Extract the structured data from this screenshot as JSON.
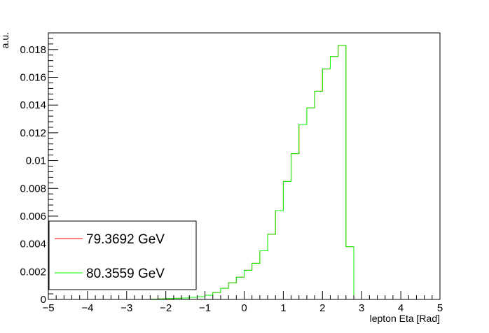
{
  "chart_data": {
    "type": "histogram-step",
    "xlabel": "lepton Eta [Rad]",
    "ylabel": "a.u.",
    "xlim": [
      -5,
      5
    ],
    "ylim": [
      0,
      0.0192
    ],
    "x_ticks": [
      -5,
      -4,
      -3,
      -2,
      -1,
      0,
      1,
      2,
      3,
      4,
      5
    ],
    "x_tick_labels": [
      "−5",
      "−4",
      "−3",
      "−2",
      "−1",
      "0",
      "1",
      "2",
      "3",
      "4",
      "5"
    ],
    "y_ticks": [
      0,
      0.002,
      0.004,
      0.006,
      0.008,
      0.01,
      0.012,
      0.014,
      0.016,
      0.018
    ],
    "y_tick_labels": [
      "0",
      "0.002",
      "0.004",
      "0.006",
      "0.008",
      "0.01",
      "0.012",
      "0.014",
      "0.016",
      "0.018"
    ],
    "bin_width": 0.2,
    "bin_edges_start": -2.4,
    "series": [
      {
        "name": "79.3692 GeV",
        "color": "#ff0000",
        "values": [
          2e-05,
          4e-05,
          6e-05,
          8e-05,
          0.0001,
          0.00015,
          0.0002,
          0.0003,
          0.0005,
          0.0008,
          0.0012,
          0.0016,
          0.0021,
          0.0026,
          0.0035,
          0.0047,
          0.0064,
          0.0085,
          0.0105,
          0.0126,
          0.0138,
          0.015,
          0.0166,
          0.0175,
          0.0183,
          0.0038,
          0.0
        ]
      },
      {
        "name": "80.3559 GeV",
        "color": "#00ff00",
        "values": [
          2e-05,
          4e-05,
          6e-05,
          8e-05,
          0.0001,
          0.00015,
          0.0002,
          0.0003,
          0.0005,
          0.0008,
          0.0012,
          0.0016,
          0.0021,
          0.0026,
          0.0035,
          0.0047,
          0.0064,
          0.0085,
          0.0105,
          0.0126,
          0.0138,
          0.015,
          0.0166,
          0.0175,
          0.0183,
          0.0038,
          0.0
        ]
      }
    ],
    "legend": {
      "placement": "bottom-left"
    }
  }
}
